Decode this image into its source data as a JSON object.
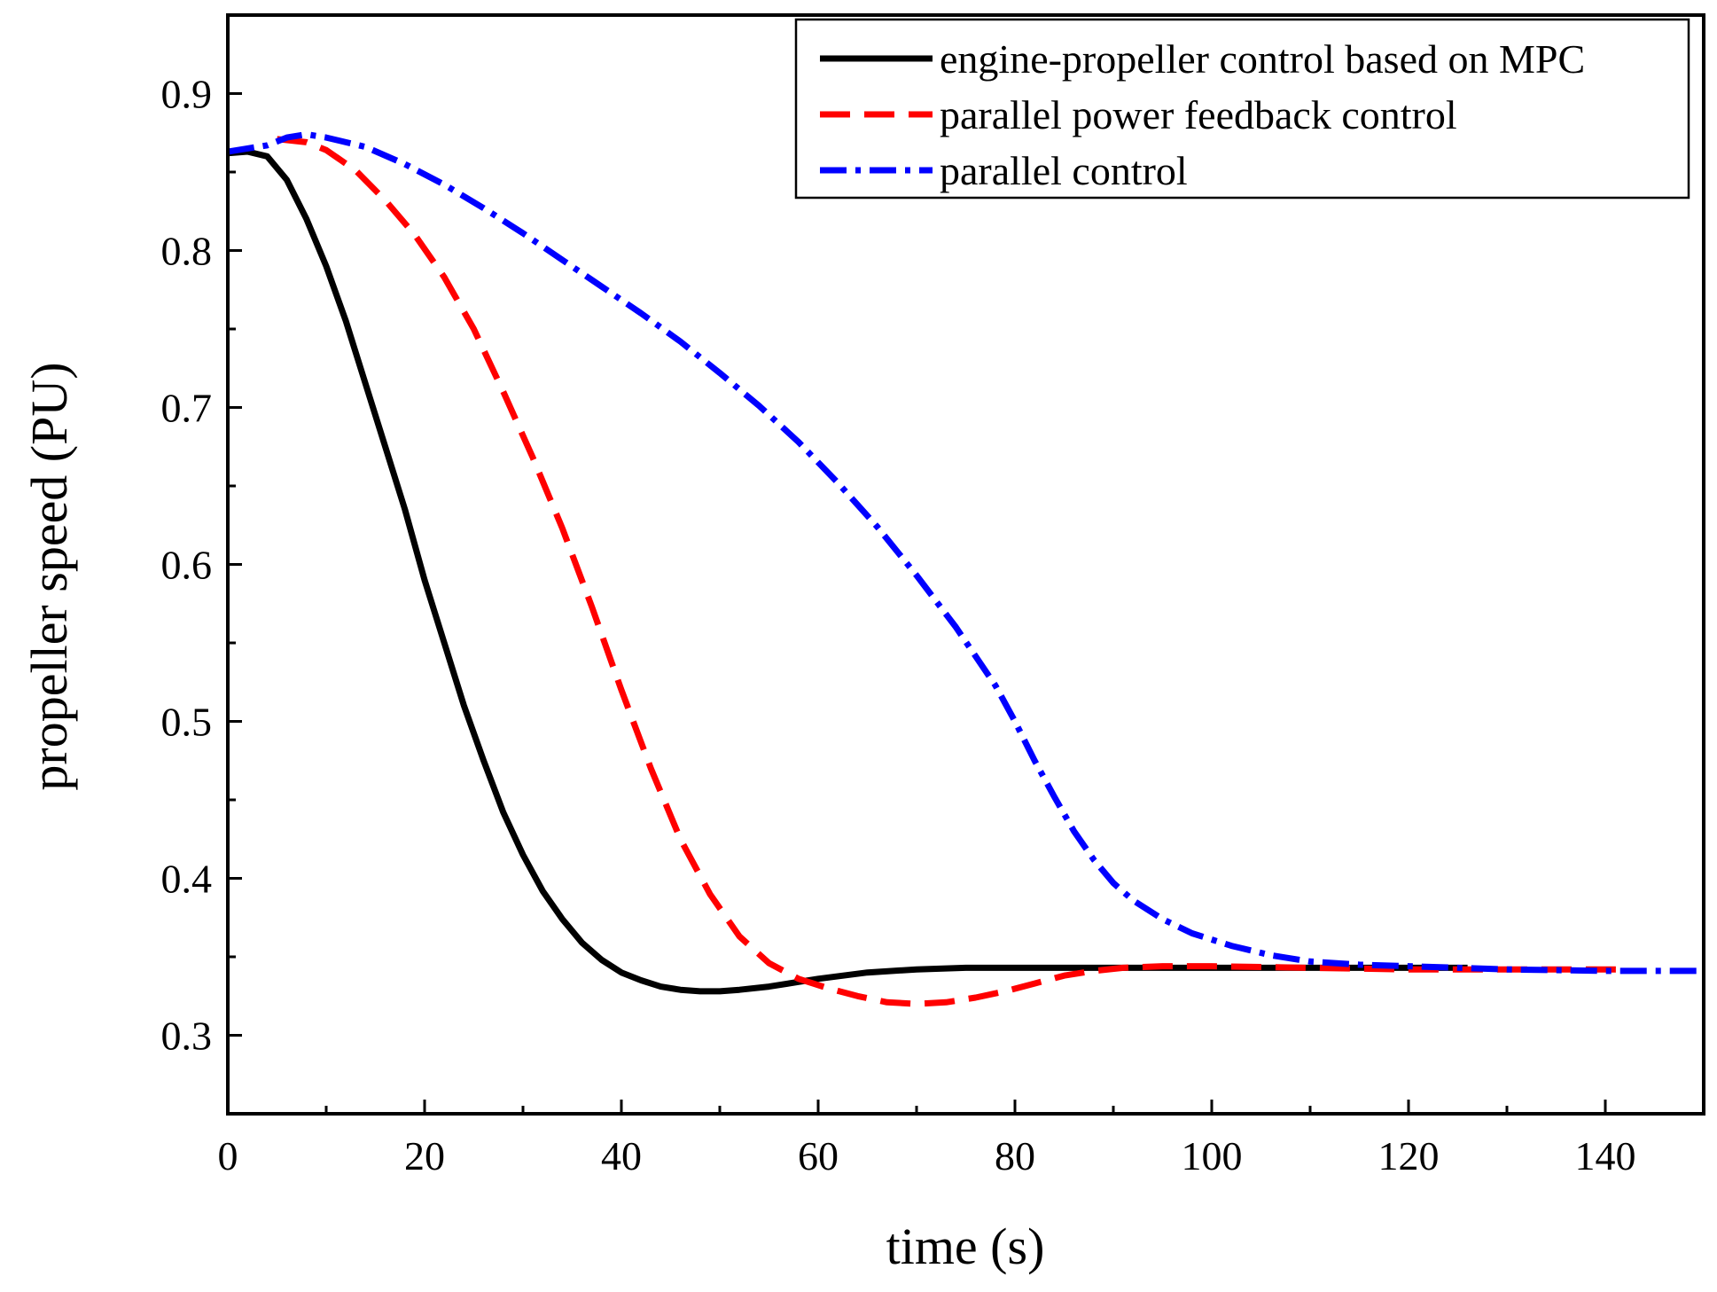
{
  "chart_data": {
    "type": "line",
    "title": "",
    "xlabel": "time (s)",
    "ylabel": "propeller speed (PU)",
    "xlim": [
      0,
      150
    ],
    "ylim": [
      0.25,
      0.95
    ],
    "x_major_ticks": [
      0,
      20,
      40,
      60,
      80,
      100,
      120,
      140
    ],
    "x_tick_labels": [
      "0",
      "20",
      "40",
      "60",
      "80",
      "100",
      "120",
      "140"
    ],
    "x_minor_ticks": [
      10,
      30,
      50,
      70,
      90,
      110,
      130
    ],
    "y_major_ticks": [
      0.3,
      0.4,
      0.5,
      0.6,
      0.7,
      0.8,
      0.9
    ],
    "y_tick_labels": [
      "0.3",
      "0.4",
      "0.5",
      "0.6",
      "0.7",
      "0.8",
      "0.9"
    ],
    "y_minor_ticks": [
      0.35,
      0.45,
      0.55,
      0.65,
      0.75,
      0.85
    ],
    "grid": false,
    "legend_position": "top-right",
    "series": [
      {
        "name": "engine-propeller control based on MPC",
        "color": "#000000",
        "style": "solid",
        "x": [
          0,
          2,
          4,
          6,
          8,
          10,
          12,
          14,
          16,
          18,
          20,
          22,
          24,
          26,
          28,
          30,
          32,
          34,
          36,
          38,
          40,
          42,
          44,
          46,
          48,
          50,
          52,
          55,
          58,
          60,
          65,
          70,
          75,
          80,
          85,
          90,
          100,
          110,
          120,
          126
        ],
        "values": [
          0.862,
          0.863,
          0.86,
          0.845,
          0.82,
          0.79,
          0.755,
          0.715,
          0.675,
          0.635,
          0.59,
          0.55,
          0.51,
          0.475,
          0.442,
          0.415,
          0.392,
          0.374,
          0.359,
          0.348,
          0.34,
          0.335,
          0.331,
          0.329,
          0.328,
          0.328,
          0.329,
          0.331,
          0.334,
          0.336,
          0.34,
          0.342,
          0.343,
          0.343,
          0.343,
          0.343,
          0.343,
          0.343,
          0.343,
          0.343
        ]
      },
      {
        "name": "parallel power feedback control",
        "color": "#ff0000",
        "style": "dashed",
        "x": [
          5,
          8,
          10,
          13,
          16,
          19,
          22,
          25,
          28,
          31,
          34,
          37,
          40,
          43,
          46,
          49,
          52,
          55,
          58,
          61,
          64,
          67,
          70,
          73,
          76,
          79,
          82,
          85,
          88,
          91,
          95,
          100,
          110,
          120,
          130,
          142
        ],
        "values": [
          0.871,
          0.869,
          0.864,
          0.851,
          0.832,
          0.81,
          0.783,
          0.75,
          0.71,
          0.668,
          0.623,
          0.573,
          0.52,
          0.47,
          0.425,
          0.39,
          0.363,
          0.346,
          0.336,
          0.33,
          0.325,
          0.321,
          0.32,
          0.321,
          0.324,
          0.328,
          0.333,
          0.338,
          0.341,
          0.343,
          0.344,
          0.344,
          0.343,
          0.342,
          0.342,
          0.342
        ]
      },
      {
        "name": "parallel control",
        "color": "#0000ff",
        "style": "dashdot",
        "x": [
          0,
          2,
          4,
          6,
          8,
          10,
          14,
          18,
          22,
          26,
          30,
          34,
          38,
          42,
          46,
          50,
          54,
          58,
          62,
          66,
          70,
          74,
          78,
          80,
          82,
          84,
          86,
          88,
          90,
          92,
          95,
          98,
          102,
          106,
          110,
          115,
          120,
          125,
          130,
          140,
          150
        ],
        "values": [
          0.863,
          0.865,
          0.867,
          0.872,
          0.874,
          0.872,
          0.866,
          0.855,
          0.842,
          0.827,
          0.811,
          0.794,
          0.777,
          0.76,
          0.742,
          0.722,
          0.701,
          0.678,
          0.652,
          0.624,
          0.593,
          0.56,
          0.523,
          0.5,
          0.475,
          0.452,
          0.43,
          0.412,
          0.397,
          0.386,
          0.374,
          0.365,
          0.357,
          0.351,
          0.347,
          0.345,
          0.344,
          0.343,
          0.342,
          0.341,
          0.341
        ]
      }
    ]
  }
}
